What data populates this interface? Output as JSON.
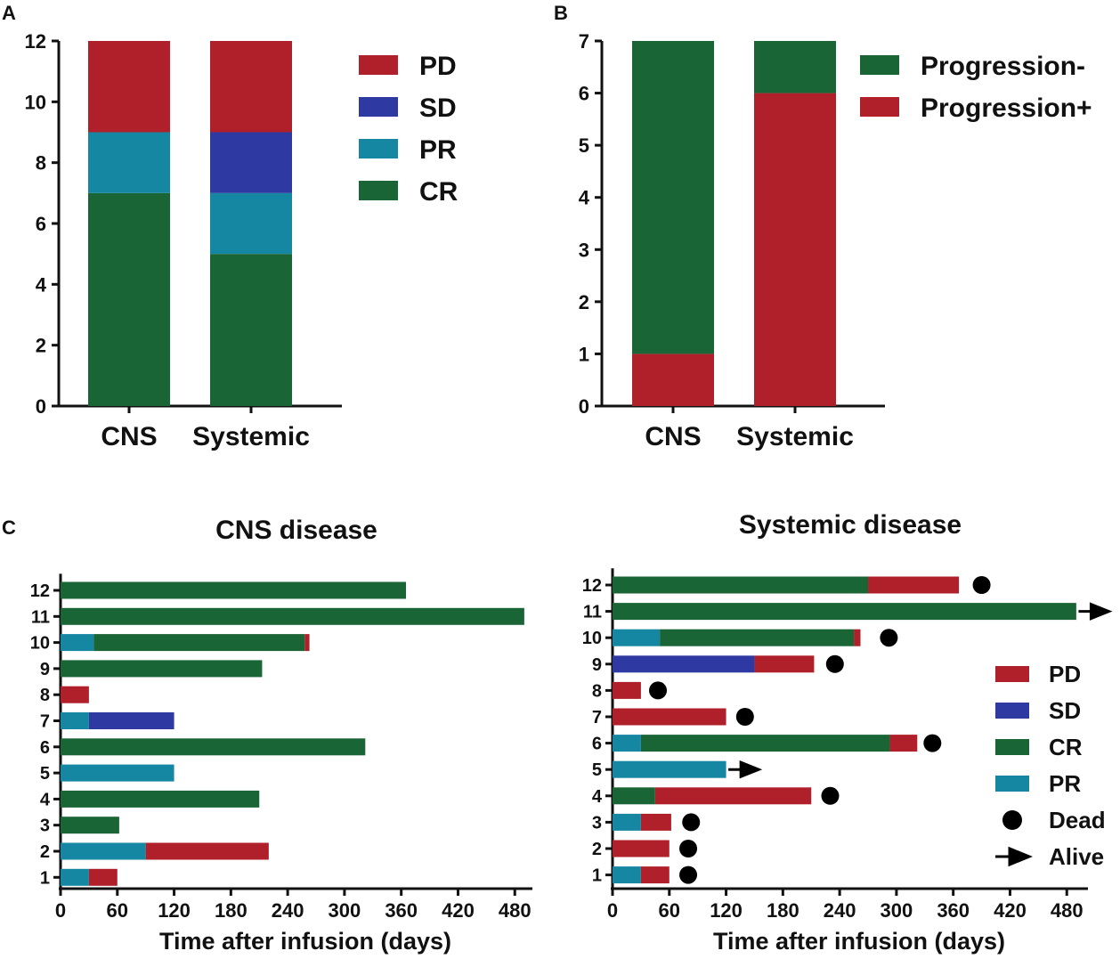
{
  "colors": {
    "PD": "#b0202a",
    "SD": "#2e3aa2",
    "PR": "#1687a2",
    "CR": "#1a6535",
    "Progression-": "#1a6535",
    "Progression+": "#b0202a",
    "marker": "#000000"
  },
  "chart_data": [
    {
      "panel": "A",
      "type": "bar",
      "stacked": true,
      "categories": [
        "CNS",
        "Systemic"
      ],
      "series": [
        {
          "name": "CR",
          "values": [
            7,
            5
          ]
        },
        {
          "name": "PR",
          "values": [
            2,
            2
          ]
        },
        {
          "name": "SD",
          "values": [
            0,
            2
          ]
        },
        {
          "name": "PD",
          "values": [
            3,
            3
          ]
        }
      ],
      "ylim": [
        0,
        12
      ],
      "yticks": [
        0,
        2,
        4,
        6,
        8,
        10,
        12
      ],
      "legend": [
        "PD",
        "SD",
        "PR",
        "CR"
      ]
    },
    {
      "panel": "B",
      "type": "bar",
      "stacked": true,
      "categories": [
        "CNS",
        "Systemic"
      ],
      "series": [
        {
          "name": "Progression+",
          "values": [
            1,
            6
          ]
        },
        {
          "name": "Progression-",
          "values": [
            6,
            1
          ]
        }
      ],
      "ylim": [
        0,
        7
      ],
      "yticks": [
        0,
        1,
        2,
        3,
        4,
        5,
        6,
        7
      ],
      "legend": [
        "Progression-",
        "Progression+"
      ]
    },
    {
      "panel": "C",
      "type": "bar",
      "orientation": "horizontal",
      "title": "CNS disease",
      "xlabel": "Time after infusion (days)",
      "xlim": [
        0,
        500
      ],
      "xticks": [
        0,
        60,
        120,
        180,
        240,
        300,
        360,
        420,
        480
      ],
      "patients": [
        {
          "id": "1",
          "segments": [
            {
              "status": "PR",
              "end": 30
            },
            {
              "status": "PD",
              "end": 60
            }
          ]
        },
        {
          "id": "2",
          "segments": [
            {
              "status": "PR",
              "end": 90
            },
            {
              "status": "PD",
              "end": 220
            }
          ]
        },
        {
          "id": "3",
          "segments": [
            {
              "status": "CR",
              "end": 62
            }
          ]
        },
        {
          "id": "4",
          "segments": [
            {
              "status": "CR",
              "end": 210
            }
          ]
        },
        {
          "id": "5",
          "segments": [
            {
              "status": "PR",
              "end": 120
            }
          ]
        },
        {
          "id": "6",
          "segments": [
            {
              "status": "CR",
              "end": 322
            }
          ]
        },
        {
          "id": "7",
          "segments": [
            {
              "status": "PR",
              "end": 30
            },
            {
              "status": "SD",
              "end": 120
            }
          ]
        },
        {
          "id": "8",
          "segments": [
            {
              "status": "PD",
              "end": 30
            }
          ]
        },
        {
          "id": "9",
          "segments": [
            {
              "status": "CR",
              "end": 213
            }
          ]
        },
        {
          "id": "10",
          "segments": [
            {
              "status": "PR",
              "end": 35
            },
            {
              "status": "CR",
              "end": 258
            },
            {
              "status": "PD",
              "end": 263
            }
          ]
        },
        {
          "id": "11",
          "segments": [
            {
              "status": "CR",
              "end": 490
            }
          ]
        },
        {
          "id": "12",
          "segments": [
            {
              "status": "CR",
              "end": 365
            }
          ]
        }
      ]
    },
    {
      "panel": "C",
      "type": "bar",
      "orientation": "horizontal",
      "title": "Systemic disease",
      "xlabel": "Time after infusion (days)",
      "xlim": [
        0,
        500
      ],
      "xticks": [
        0,
        60,
        120,
        180,
        240,
        300,
        360,
        420,
        480
      ],
      "patients": [
        {
          "id": "1",
          "segments": [
            {
              "status": "PR",
              "end": 30
            },
            {
              "status": "PD",
              "end": 60
            }
          ],
          "outcome": "Dead",
          "marker_at": 80
        },
        {
          "id": "2",
          "segments": [
            {
              "status": "PD",
              "end": 60
            }
          ],
          "outcome": "Dead",
          "marker_at": 80
        },
        {
          "id": "3",
          "segments": [
            {
              "status": "PR",
              "end": 30
            },
            {
              "status": "PD",
              "end": 62
            }
          ],
          "outcome": "Dead",
          "marker_at": 83
        },
        {
          "id": "4",
          "segments": [
            {
              "status": "CR",
              "end": 45
            },
            {
              "status": "PD",
              "end": 210
            }
          ],
          "outcome": "Dead",
          "marker_at": 230
        },
        {
          "id": "5",
          "segments": [
            {
              "status": "PR",
              "end": 120
            }
          ],
          "outcome": "Alive",
          "marker_at": 145
        },
        {
          "id": "6",
          "segments": [
            {
              "status": "PR",
              "end": 30
            },
            {
              "status": "CR",
              "end": 293
            },
            {
              "status": "PD",
              "end": 322
            }
          ],
          "outcome": "Dead",
          "marker_at": 338
        },
        {
          "id": "7",
          "segments": [
            {
              "status": "PD",
              "end": 120
            }
          ],
          "outcome": "Dead",
          "marker_at": 140
        },
        {
          "id": "8",
          "segments": [
            {
              "status": "PD",
              "end": 30
            }
          ],
          "outcome": "Dead",
          "marker_at": 48
        },
        {
          "id": "9",
          "segments": [
            {
              "status": "SD",
              "end": 150
            },
            {
              "status": "PD",
              "end": 213
            }
          ],
          "outcome": "Dead",
          "marker_at": 235
        },
        {
          "id": "10",
          "segments": [
            {
              "status": "PR",
              "end": 50
            },
            {
              "status": "CR",
              "end": 255
            },
            {
              "status": "PD",
              "end": 262
            }
          ],
          "outcome": "Dead",
          "marker_at": 292
        },
        {
          "id": "11",
          "segments": [
            {
              "status": "CR",
              "end": 490
            }
          ],
          "outcome": "Alive",
          "marker_at": 515
        },
        {
          "id": "12",
          "segments": [
            {
              "status": "CR",
              "end": 270
            },
            {
              "status": "PD",
              "end": 366
            }
          ],
          "outcome": "Dead",
          "marker_at": 390
        }
      ],
      "legend": [
        "PD",
        "SD",
        "CR",
        "PR",
        "Dead",
        "Alive"
      ]
    }
  ],
  "panels": {
    "a_label": "A",
    "b_label": "B",
    "c_label": "C"
  }
}
